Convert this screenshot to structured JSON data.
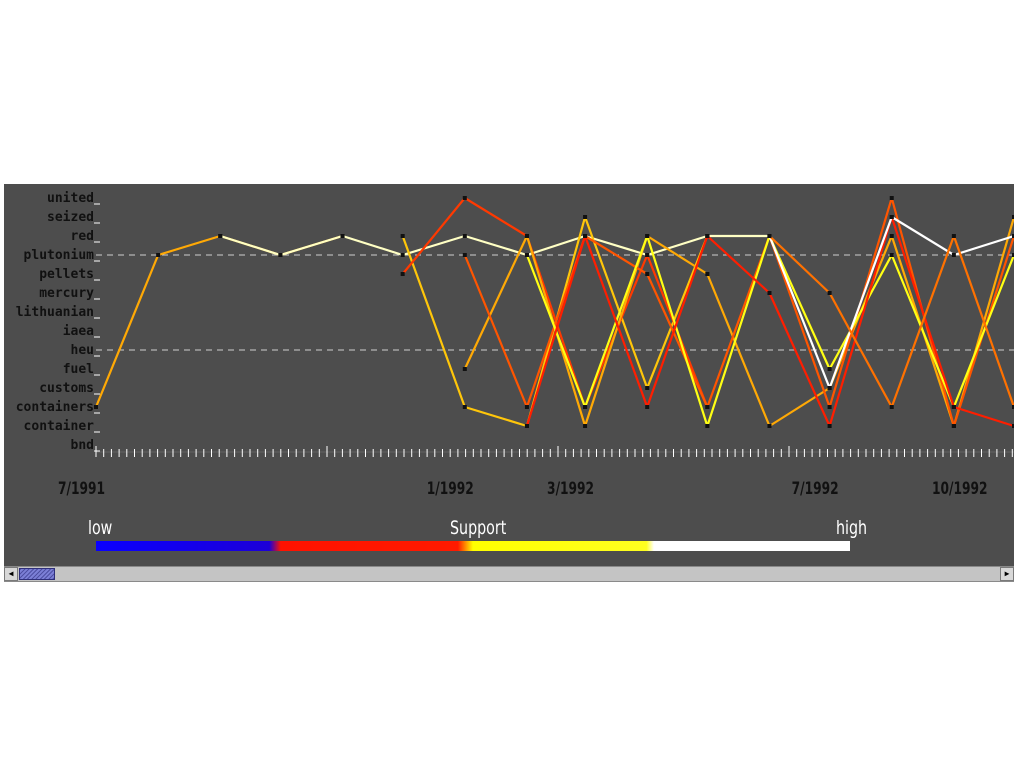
{
  "chart_data": {
    "type": "line",
    "keywords": [
      "united",
      "seized",
      "red",
      "plutonium",
      "pellets",
      "mercury",
      "lithuanian",
      "iaea",
      "heu",
      "fuel",
      "customs",
      "containers",
      "container",
      "bnd"
    ],
    "x_tick_labels": [
      "7/1991",
      "1/1992",
      "3/1992",
      "7/1992",
      "10/1992"
    ],
    "legend": {
      "title": "Support",
      "low_label": "low",
      "high_label": "high",
      "colors": [
        "#0a00ff",
        "#ff1a00",
        "#ffff00",
        "#ffffff"
      ]
    },
    "series": [
      {
        "support": 0.55,
        "points": [
          [
            "7/1991",
            "containers"
          ],
          [
            "8/1991",
            "plutonium"
          ],
          [
            "9/1991",
            "red"
          ],
          [
            "10/1991",
            "plutonium"
          ],
          [
            "11/1991",
            "red"
          ]
        ]
      },
      {
        "support": 0.85,
        "points": [
          [
            "9/1991",
            "red"
          ],
          [
            "10/1991",
            "plutonium"
          ],
          [
            "11/1991",
            "red"
          ],
          [
            "12/1991",
            "plutonium"
          ],
          [
            "1/1992",
            "red"
          ],
          [
            "2/1992",
            "plutonium"
          ],
          [
            "3/1992",
            "red"
          ],
          [
            "4/1992",
            "plutonium"
          ],
          [
            "5/1992",
            "red"
          ],
          [
            "6/1992",
            "red"
          ]
        ]
      },
      {
        "support": 0.6,
        "points": [
          [
            "12/1991",
            "red"
          ],
          [
            "1/1992",
            "containers"
          ],
          [
            "2/1992",
            "container"
          ],
          [
            "3/1992",
            "seized"
          ],
          [
            "4/1992",
            "customs"
          ],
          [
            "5/1992",
            "red"
          ]
        ]
      },
      {
        "support": 0.35,
        "points": [
          [
            "12/1991",
            "pellets"
          ],
          [
            "1/1992",
            "united"
          ],
          [
            "2/1992",
            "red"
          ],
          [
            "3/1992",
            "containers"
          ],
          [
            "4/1992",
            "plutonium"
          ],
          [
            "5/1992",
            "containers"
          ]
        ]
      },
      {
        "support": 0.55,
        "points": [
          [
            "1/1992",
            "fuel"
          ],
          [
            "2/1992",
            "red"
          ],
          [
            "3/1992",
            "container"
          ],
          [
            "4/1992",
            "red"
          ],
          [
            "5/1992",
            "pellets"
          ],
          [
            "6/1992",
            "container"
          ],
          [
            "7/1992",
            "customs"
          ],
          [
            "8/1992",
            "red"
          ],
          [
            "9/1992",
            "container"
          ],
          [
            "10/1992",
            "seized"
          ]
        ]
      },
      {
        "support": 0.4,
        "points": [
          [
            "1/1992",
            "plutonium"
          ],
          [
            "2/1992",
            "containers"
          ],
          [
            "3/1992",
            "red"
          ],
          [
            "4/1992",
            "pellets"
          ],
          [
            "5/1992",
            "containers"
          ],
          [
            "6/1992",
            "red"
          ],
          [
            "7/1992",
            "containers"
          ],
          [
            "8/1992",
            "united"
          ],
          [
            "9/1992",
            "container"
          ],
          [
            "10/1992",
            "red"
          ]
        ]
      },
      {
        "support": 0.7,
        "points": [
          [
            "2/1992",
            "plutonium"
          ],
          [
            "3/1992",
            "containers"
          ],
          [
            "4/1992",
            "red"
          ],
          [
            "5/1992",
            "container"
          ],
          [
            "6/1992",
            "red"
          ],
          [
            "7/1992",
            "fuel"
          ],
          [
            "8/1992",
            "plutonium"
          ],
          [
            "9/1992",
            "containers"
          ],
          [
            "10/1992",
            "plutonium"
          ]
        ]
      },
      {
        "support": 0.3,
        "points": [
          [
            "2/1992",
            "container"
          ],
          [
            "3/1992",
            "red"
          ],
          [
            "4/1992",
            "containers"
          ],
          [
            "5/1992",
            "red"
          ],
          [
            "6/1992",
            "mercury"
          ],
          [
            "7/1992",
            "container"
          ],
          [
            "8/1992",
            "seized"
          ],
          [
            "9/1992",
            "containers"
          ],
          [
            "10/1992",
            "container"
          ]
        ]
      },
      {
        "support": 0.9,
        "points": [
          [
            "6/1992",
            "red"
          ],
          [
            "7/1992",
            "customs"
          ],
          [
            "8/1992",
            "seized"
          ],
          [
            "9/1992",
            "plutonium"
          ],
          [
            "10/1992",
            "red"
          ]
        ]
      },
      {
        "support": 0.45,
        "points": [
          [
            "6/1992",
            "red"
          ],
          [
            "7/1992",
            "mercury"
          ],
          [
            "8/1992",
            "containers"
          ],
          [
            "9/1992",
            "red"
          ],
          [
            "10/1992",
            "containers"
          ]
        ]
      }
    ]
  }
}
